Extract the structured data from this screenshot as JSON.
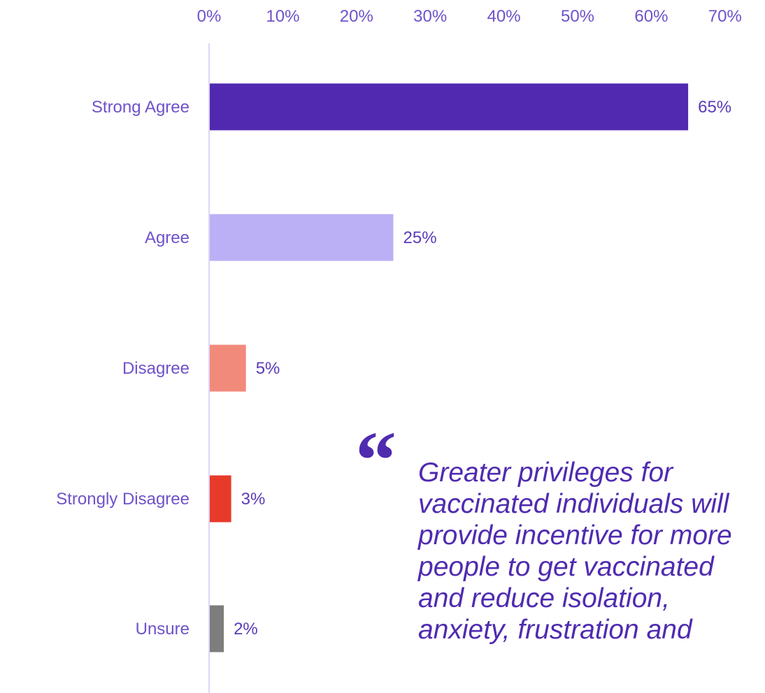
{
  "chart_data": {
    "type": "bar",
    "orientation": "horizontal",
    "categories": [
      "Strong Agree",
      "Agree",
      "Disagree",
      "Strongly Disagree",
      "Unsure"
    ],
    "values": [
      65,
      25,
      5,
      3,
      2
    ],
    "data_labels": [
      "65%",
      "25%",
      "5%",
      "3%",
      "2%"
    ],
    "bar_colors": [
      "#5129b0",
      "#bbb0f5",
      "#f28a7c",
      "#e83a2a",
      "#7d7d7d"
    ],
    "xlim": [
      0,
      70
    ],
    "x_ticks": [
      0,
      10,
      20,
      30,
      40,
      50,
      60,
      70
    ],
    "x_tick_labels": [
      "0%",
      "10%",
      "20%",
      "30%",
      "40%",
      "50%",
      "60%",
      "70%"
    ],
    "x_axis_position": "top",
    "grid": false,
    "title": "",
    "xlabel": "",
    "ylabel": ""
  },
  "quote": {
    "mark": "“",
    "lines": [
      "Greater privileges for",
      "vaccinated individuals will",
      "provide incentive for more",
      "people to get vaccinated",
      "and reduce isolation,",
      "anxiety, frustration and"
    ]
  },
  "colors": {
    "text": "#6f52c9",
    "axis_line": "#ddd6f5",
    "quote": "#4f2bb0"
  }
}
